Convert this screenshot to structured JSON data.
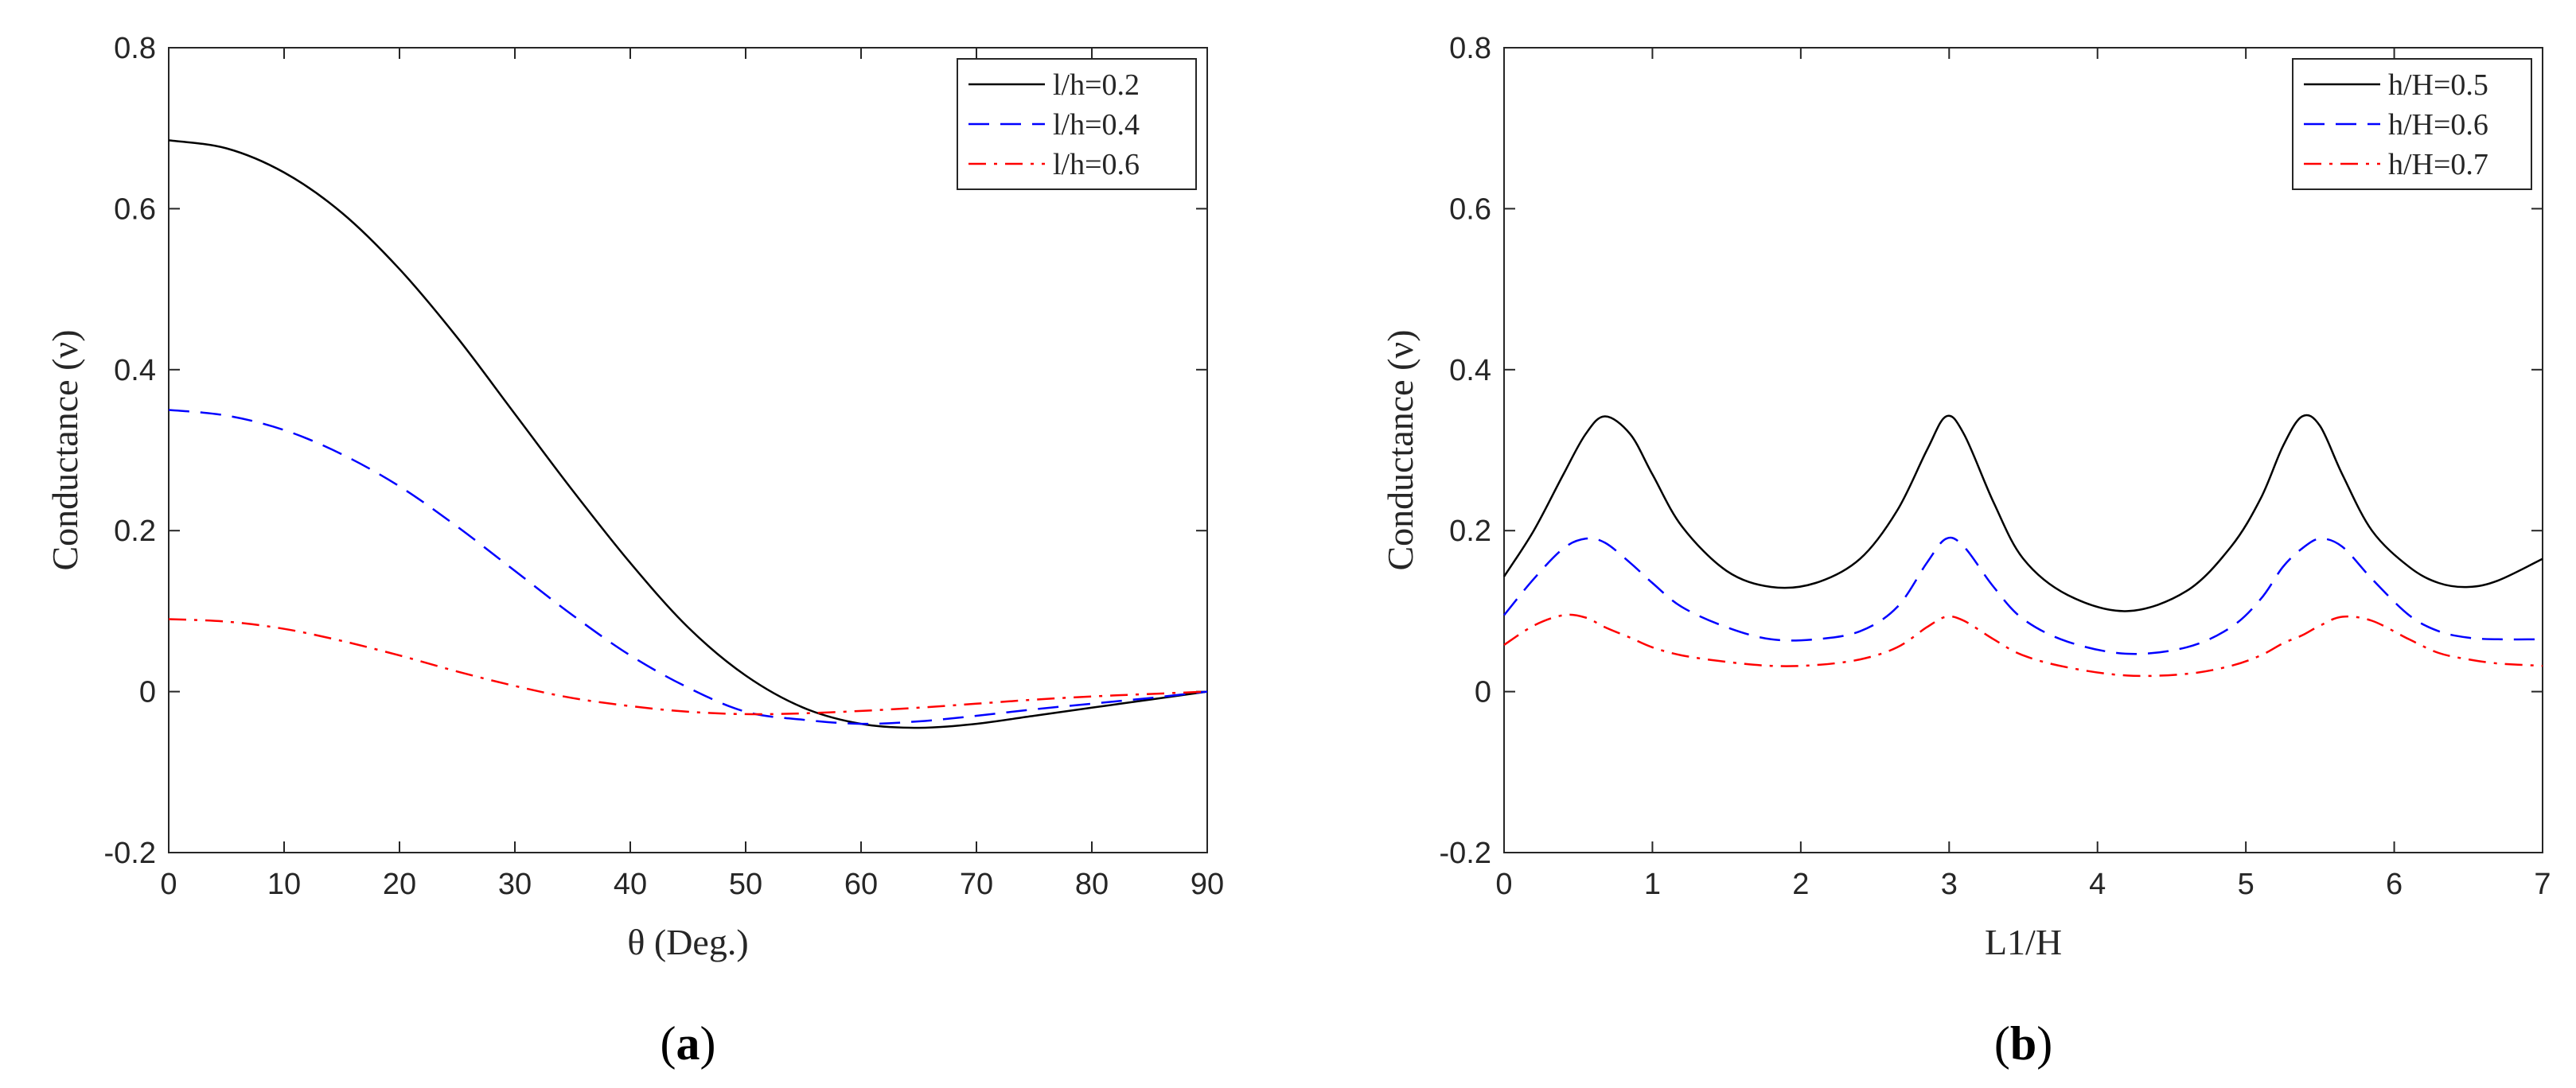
{
  "chart_data": [
    {
      "type": "line",
      "xlabel": "θ (Deg.)",
      "ylabel": "Conductance (ν)",
      "xlim": [
        0,
        90
      ],
      "ylim": [
        -0.2,
        0.8
      ],
      "xticks": [
        0,
        10,
        20,
        30,
        40,
        50,
        60,
        70,
        80,
        90
      ],
      "xtick_labels": [
        "0",
        "10",
        "20",
        "30",
        "40",
        "50",
        "60",
        "70",
        "80",
        "90"
      ],
      "yticks": [
        -0.2,
        0,
        0.2,
        0.4,
        0.6,
        0.8
      ],
      "ytick_labels": [
        "-0.2",
        "0",
        "0.2",
        "0.4",
        "0.6",
        "0.8"
      ],
      "grid": false,
      "legend_position": "top-right",
      "caption_letter": "a",
      "x": [
        0,
        5,
        10,
        15,
        20,
        25,
        30,
        35,
        40,
        45,
        50,
        55,
        60,
        65,
        70,
        75,
        80,
        85,
        90
      ],
      "series": [
        {
          "name": "l/h=0.2",
          "legend_text": "l/h=0.2",
          "color": "#000000",
          "dash": "solid",
          "values": [
            0.685,
            0.675,
            0.645,
            0.595,
            0.525,
            0.44,
            0.345,
            0.25,
            0.16,
            0.08,
            0.02,
            -0.02,
            -0.04,
            -0.045,
            -0.04,
            -0.03,
            -0.02,
            -0.01,
            0.0
          ]
        },
        {
          "name": "l/h=0.4",
          "legend_text": "l/h=0.4",
          "color": "#0000ff",
          "dash": "dashed",
          "values": [
            0.35,
            0.343,
            0.325,
            0.295,
            0.255,
            0.205,
            0.15,
            0.095,
            0.045,
            0.005,
            -0.025,
            -0.035,
            -0.04,
            -0.037,
            -0.03,
            -0.022,
            -0.015,
            -0.008,
            0.0
          ]
        },
        {
          "name": "l/h=0.6",
          "legend_text": "l/h=0.6",
          "color": "#ff0000",
          "dash": "dashdot",
          "values": [
            0.09,
            0.087,
            0.078,
            0.063,
            0.045,
            0.025,
            0.007,
            -0.008,
            -0.018,
            -0.025,
            -0.028,
            -0.027,
            -0.024,
            -0.02,
            -0.015,
            -0.01,
            -0.006,
            -0.003,
            0.0
          ]
        }
      ]
    },
    {
      "type": "line",
      "xlabel": "L1/H",
      "ylabel": "Conductance (ν)",
      "xlim": [
        0,
        7
      ],
      "ylim": [
        -0.2,
        0.8
      ],
      "xticks": [
        0,
        1,
        2,
        3,
        4,
        5,
        6,
        7
      ],
      "xtick_labels": [
        "0",
        "1",
        "2",
        "3",
        "4",
        "5",
        "6",
        "7"
      ],
      "yticks": [
        -0.2,
        0,
        0.2,
        0.4,
        0.6,
        0.8
      ],
      "ytick_labels": [
        "-0.2",
        "0",
        "0.2",
        "0.4",
        "0.6",
        "0.8"
      ],
      "grid": false,
      "legend_position": "top-right",
      "caption_letter": "b",
      "x": [
        0,
        0.2,
        0.4,
        0.55,
        0.68,
        0.85,
        1.0,
        1.2,
        1.5,
        1.8,
        2.1,
        2.4,
        2.65,
        2.85,
        2.98,
        3.1,
        3.3,
        3.5,
        3.8,
        4.2,
        4.6,
        4.9,
        5.1,
        5.25,
        5.38,
        5.5,
        5.65,
        5.85,
        6.1,
        6.3,
        6.5,
        6.7,
        7.0
      ],
      "series": [
        {
          "name": "h/H=0.5",
          "legend_text": "h/H=0.5",
          "color": "#000000",
          "dash": "solid",
          "values": [
            0.143,
            0.2,
            0.27,
            0.32,
            0.342,
            0.32,
            0.27,
            0.205,
            0.15,
            0.13,
            0.135,
            0.165,
            0.225,
            0.3,
            0.342,
            0.32,
            0.235,
            0.165,
            0.12,
            0.1,
            0.125,
            0.18,
            0.24,
            0.305,
            0.342,
            0.33,
            0.27,
            0.2,
            0.155,
            0.135,
            0.13,
            0.138,
            0.165
          ]
        },
        {
          "name": "h/H=0.6",
          "legend_text": "h/H=0.6",
          "color": "#0000ff",
          "dash": "dashed",
          "values": [
            0.095,
            0.14,
            0.178,
            0.19,
            0.185,
            0.16,
            0.135,
            0.105,
            0.08,
            0.065,
            0.065,
            0.075,
            0.105,
            0.16,
            0.19,
            0.18,
            0.13,
            0.09,
            0.062,
            0.047,
            0.055,
            0.08,
            0.115,
            0.155,
            0.178,
            0.19,
            0.18,
            0.14,
            0.095,
            0.075,
            0.067,
            0.065,
            0.065
          ]
        },
        {
          "name": "h/H=0.7",
          "legend_text": "h/H=0.7",
          "color": "#ff0000",
          "dash": "dashdot",
          "values": [
            0.058,
            0.082,
            0.095,
            0.092,
            0.08,
            0.067,
            0.055,
            0.045,
            0.037,
            0.032,
            0.033,
            0.04,
            0.055,
            0.08,
            0.093,
            0.088,
            0.065,
            0.045,
            0.03,
            0.02,
            0.022,
            0.032,
            0.045,
            0.06,
            0.07,
            0.082,
            0.093,
            0.088,
            0.065,
            0.048,
            0.04,
            0.035,
            0.032
          ]
        }
      ]
    }
  ]
}
